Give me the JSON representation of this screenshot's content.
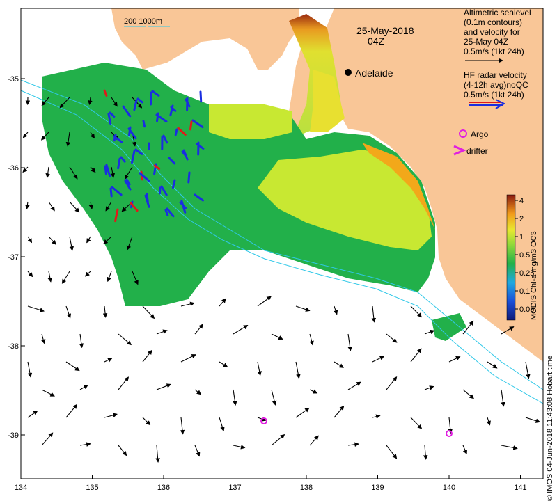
{
  "map": {
    "date": "25-May-2018",
    "time": "04Z",
    "city": "Adelaide",
    "scale_label": "200  1000m",
    "legend": {
      "title_lines": [
        "Altimetric sealevel",
        "(0.1m contours)",
        "and velocity for",
        "25-May 04Z",
        "0.5m/s (1kt 24h)"
      ],
      "hf_lines": [
        "HF radar velocity",
        "(4-12h avg)noQC",
        "0.5m/s (1kt 24h)"
      ],
      "argo_label": "Argo",
      "drifter_label": "drifter"
    },
    "colorbar": {
      "label": "MODIS Chl-a mg/m3 OC3",
      "ticks": [
        "4",
        "2",
        "1",
        "0.5",
        "0.25",
        "0.1",
        "0.05"
      ]
    },
    "axes": {
      "lon_ticks": [
        "134",
        "135",
        "136",
        "137",
        "138",
        "139",
        "140",
        "141"
      ],
      "lat_ticks": [
        "-35",
        "-36",
        "-37",
        "-38",
        "-39"
      ]
    },
    "credit": "© IMOS 04-Jun-2018 11:43:08 Hobart time",
    "colors": {
      "land": "#f9c697",
      "ocean": "#ffffff",
      "chl_low": "#22b04a",
      "chl_mid": "#c8e832",
      "chl_high": "#f2a81a",
      "hf_radar": "#1a2ee0",
      "hf_radar_alt": "#e01a1a",
      "argo": "#e020e0",
      "isobath": "#30c8e8"
    }
  }
}
